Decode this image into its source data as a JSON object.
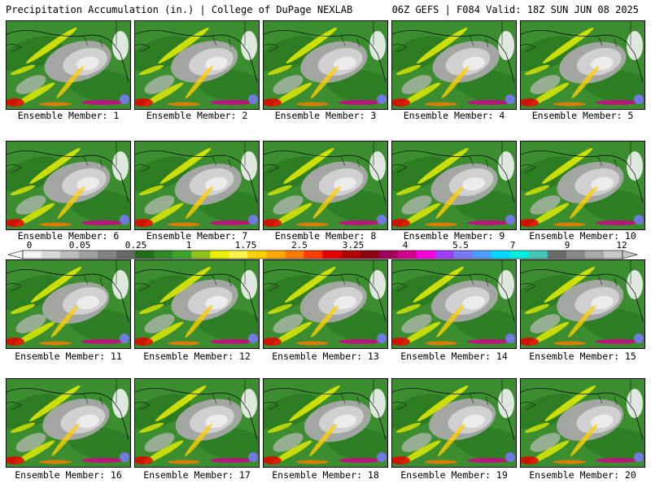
{
  "header": {
    "left": "Precipitation Accumulation (in.) | College of DuPage NEXLAB",
    "right": "06Z GEFS | F084 Valid: 18Z SUN JUN 08 2025"
  },
  "panels": [
    {
      "caption": "Ensemble Member: 1"
    },
    {
      "caption": "Ensemble Member: 2"
    },
    {
      "caption": "Ensemble Member: 3"
    },
    {
      "caption": "Ensemble Member: 4"
    },
    {
      "caption": "Ensemble Member: 5"
    },
    {
      "caption": "Ensemble Member: 6"
    },
    {
      "caption": "Ensemble Member: 7"
    },
    {
      "caption": "Ensemble Member: 8"
    },
    {
      "caption": "Ensemble Member: 9"
    },
    {
      "caption": "Ensemble Member: 10"
    },
    {
      "caption": "Ensemble Member: 11"
    },
    {
      "caption": "Ensemble Member: 12"
    },
    {
      "caption": "Ensemble Member: 13"
    },
    {
      "caption": "Ensemble Member: 14"
    },
    {
      "caption": "Ensemble Member: 15"
    },
    {
      "caption": "Ensemble Member: 16"
    },
    {
      "caption": "Ensemble Member: 17"
    },
    {
      "caption": "Ensemble Member: 18"
    },
    {
      "caption": "Ensemble Member: 19"
    },
    {
      "caption": "Ensemble Member: 20"
    }
  ],
  "colorbar": {
    "labels": [
      "0",
      "0.05",
      "0.25",
      "1",
      "1.75",
      "2.5",
      "3.25",
      "4",
      "5.5",
      "7",
      "9",
      "12"
    ],
    "colors": [
      "#f4f4f4",
      "#d8d8d8",
      "#bcbcbc",
      "#a0a0a0",
      "#848484",
      "#686868",
      "#246c1c",
      "#2f8a25",
      "#3ba42d",
      "#8fc41c",
      "#e8f000",
      "#fff44c",
      "#ffd000",
      "#ffa800",
      "#ff7a00",
      "#ff3c00",
      "#e60000",
      "#b40000",
      "#8c0010",
      "#a0005a",
      "#d2008c",
      "#ff00e0",
      "#a040ff",
      "#7a7aff",
      "#4aa0ff",
      "#00d8ff",
      "#00f0e0",
      "#40c8b4",
      "#6a6a6a",
      "#8a8a8a",
      "#a8a8a8",
      "#c8c8c8"
    ]
  }
}
